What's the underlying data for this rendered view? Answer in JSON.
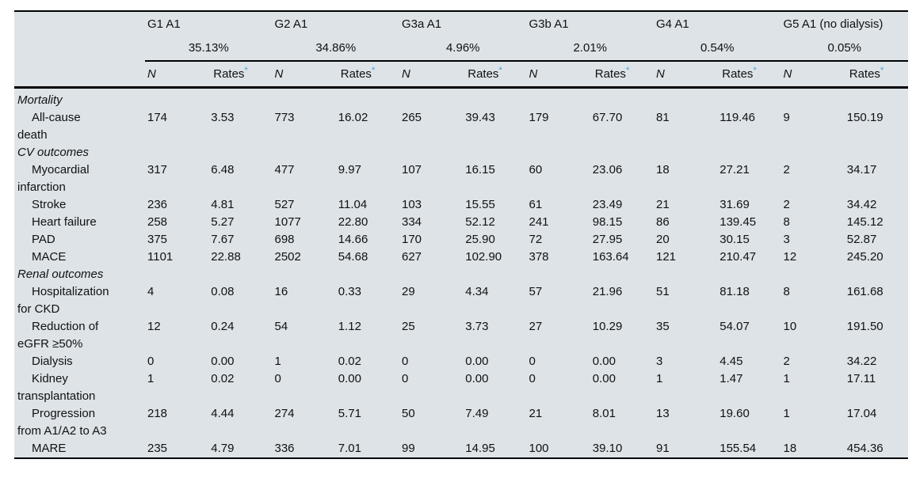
{
  "page": {
    "background_color": "#ffffff"
  },
  "table": {
    "description": "Outcome events and rates by CKD stage group",
    "style": {
      "background_color": "#dde3e7",
      "rule_color": "#000000",
      "text_color": "#111111",
      "footnote_marker_color": "#3aa4db"
    },
    "groups": [
      {
        "label": "G1 A1",
        "percent": "35.13%"
      },
      {
        "label": "G2 A1",
        "percent": "34.86%"
      },
      {
        "label": "G3a A1",
        "percent": "4.96%"
      },
      {
        "label": "G3b A1",
        "percent": "2.01%"
      },
      {
        "label": "G4 A1",
        "percent": "0.54%"
      },
      {
        "label": "G5 A1 (no dialysis)",
        "percent": "0.05%"
      }
    ],
    "subheaders": {
      "n": "N",
      "rates": "Rates",
      "footnote_marker": "*"
    },
    "rows": [
      {
        "type": "section",
        "label": "Mortality"
      },
      {
        "type": "data",
        "label_lines": [
          "All-cause",
          "death"
        ],
        "values": [
          "174",
          "3.53",
          "773",
          "16.02",
          "265",
          "39.43",
          "179",
          "67.70",
          "81",
          "119.46",
          "9",
          "150.19"
        ]
      },
      {
        "type": "section",
        "label": "CV outcomes"
      },
      {
        "type": "data",
        "label_lines": [
          "Myocardial",
          "infarction"
        ],
        "values": [
          "317",
          "6.48",
          "477",
          "9.97",
          "107",
          "16.15",
          "60",
          "23.06",
          "18",
          "27.21",
          "2",
          "34.17"
        ]
      },
      {
        "type": "data",
        "label_lines": [
          "Stroke"
        ],
        "values": [
          "236",
          "4.81",
          "527",
          "11.04",
          "103",
          "15.55",
          "61",
          "23.49",
          "21",
          "31.69",
          "2",
          "34.42"
        ]
      },
      {
        "type": "data",
        "label_lines": [
          "Heart failure"
        ],
        "values": [
          "258",
          "5.27",
          "1077",
          "22.80",
          "334",
          "52.12",
          "241",
          "98.15",
          "86",
          "139.45",
          "8",
          "145.12"
        ]
      },
      {
        "type": "data",
        "label_lines": [
          "PAD"
        ],
        "values": [
          "375",
          "7.67",
          "698",
          "14.66",
          "170",
          "25.90",
          "72",
          "27.95",
          "20",
          "30.15",
          "3",
          "52.87"
        ]
      },
      {
        "type": "data",
        "label_lines": [
          "MACE"
        ],
        "values": [
          "1101",
          "22.88",
          "2502",
          "54.68",
          "627",
          "102.90",
          "378",
          "163.64",
          "121",
          "210.47",
          "12",
          "245.20"
        ]
      },
      {
        "type": "section",
        "label": "Renal outcomes"
      },
      {
        "type": "data",
        "label_lines": [
          "Hospitalization",
          "for CKD"
        ],
        "values": [
          "4",
          "0.08",
          "16",
          "0.33",
          "29",
          "4.34",
          "57",
          "21.96",
          "51",
          "81.18",
          "8",
          "161.68"
        ]
      },
      {
        "type": "data",
        "label_lines": [
          "Reduction of",
          "eGFR ≥50%"
        ],
        "values": [
          "12",
          "0.24",
          "54",
          "1.12",
          "25",
          "3.73",
          "27",
          "10.29",
          "35",
          "54.07",
          "10",
          "191.50"
        ]
      },
      {
        "type": "data",
        "label_lines": [
          "Dialysis"
        ],
        "values": [
          "0",
          "0.00",
          "1",
          "0.02",
          "0",
          "0.00",
          "0",
          "0.00",
          "3",
          "4.45",
          "2",
          "34.22"
        ]
      },
      {
        "type": "data",
        "label_lines": [
          "Kidney",
          "transplantation"
        ],
        "values": [
          "1",
          "0.02",
          "0",
          "0.00",
          "0",
          "0.00",
          "0",
          "0.00",
          "1",
          "1.47",
          "1",
          "17.11"
        ]
      },
      {
        "type": "data",
        "label_lines": [
          "Progression",
          "from A1/A2 to A3"
        ],
        "values": [
          "218",
          "4.44",
          "274",
          "5.71",
          "50",
          "7.49",
          "21",
          "8.01",
          "13",
          "19.60",
          "1",
          "17.04"
        ]
      },
      {
        "type": "data",
        "label_lines": [
          "MARE"
        ],
        "values": [
          "235",
          "4.79",
          "336",
          "7.01",
          "99",
          "14.95",
          "100",
          "39.10",
          "91",
          "155.54",
          "18",
          "454.36"
        ]
      }
    ]
  }
}
